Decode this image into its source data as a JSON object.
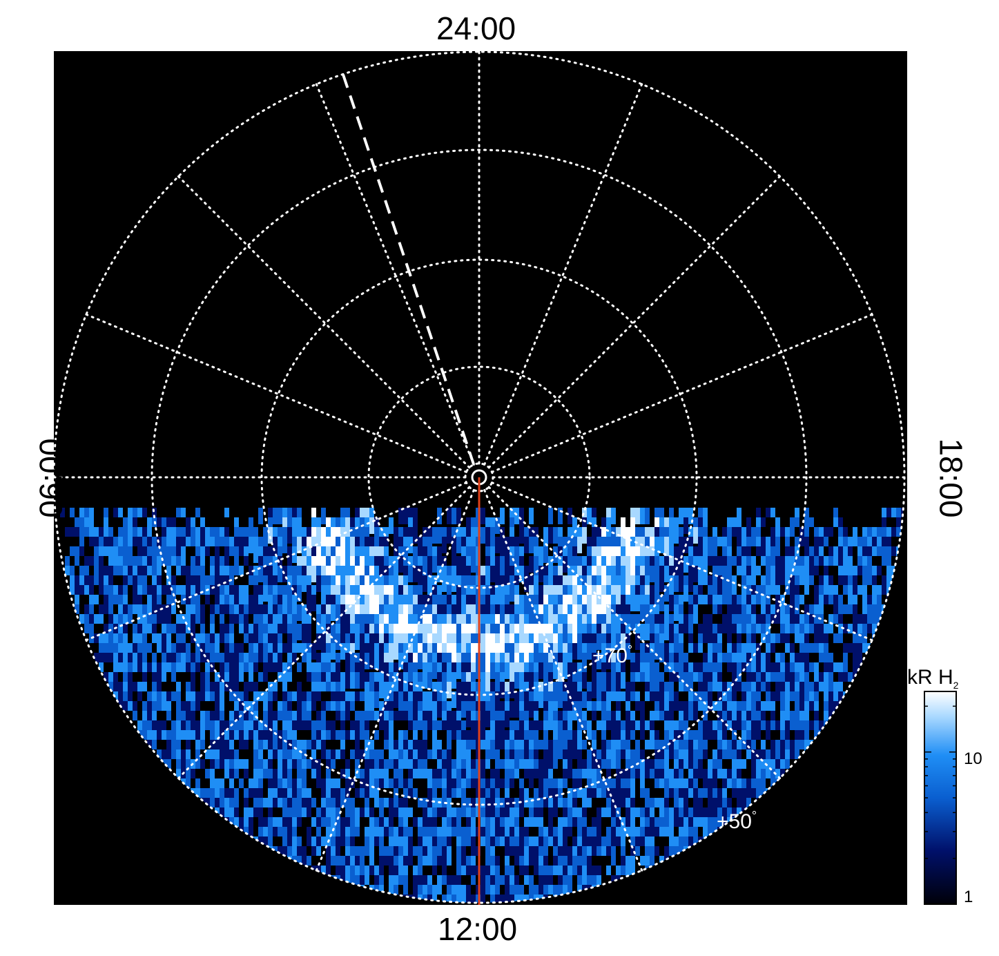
{
  "chart_data": {
    "type": "heatmap",
    "projection": "polar (north pole centered)",
    "local_time_labels": {
      "top": "24:00",
      "bottom": "12:00",
      "left": "06:00",
      "right": "18:00"
    },
    "latitude_labels": [
      "+70",
      "+50"
    ],
    "colorbar": {
      "title": "kR H",
      "title_subscript": "2",
      "scale": "log",
      "tick_labels": [
        "10",
        "1"
      ],
      "range": [
        1,
        25
      ],
      "colormap": [
        "#000010",
        "#00106a",
        "#0a5fd0",
        "#1f8ef5",
        "#a8d8ff",
        "#ffffff"
      ]
    },
    "grid": true,
    "colors": {
      "background": "#000000",
      "grid": "#ffffff",
      "noon_meridian_line": "#e0401a"
    },
    "annotations": [
      "dashed white line from pole toward ~01:30 LT",
      "red line along 12:00 LT meridian"
    ]
  }
}
